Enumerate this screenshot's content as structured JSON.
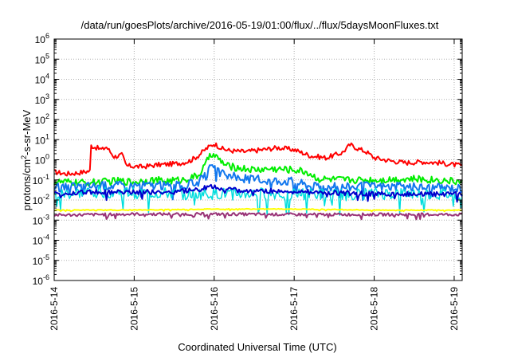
{
  "chart_data": {
    "type": "line",
    "title": "/data/run/goesPlots/archive/2016-05-19/01:00/flux/../flux/5daysMoonFluxes.txt",
    "xlabel": "Coordinated Universal Time (UTC)",
    "ylabel": {
      "prefix": "protons/cm",
      "sup": "2",
      "suffix": "-s-sr-MeV"
    },
    "yscale": "log",
    "ylim": [
      1e-06,
      1000000.0
    ],
    "xlim_days": [
      0,
      5.1
    ],
    "grid": true,
    "yticks": [
      {
        "value": -6,
        "base": "10",
        "exp": "-6"
      },
      {
        "value": -5,
        "base": "10",
        "exp": "-5"
      },
      {
        "value": -4,
        "base": "10",
        "exp": "-4"
      },
      {
        "value": -3,
        "base": "10",
        "exp": "-3"
      },
      {
        "value": -2,
        "base": "10",
        "exp": "-2"
      },
      {
        "value": -1,
        "base": "10",
        "exp": "-1"
      },
      {
        "value": 0,
        "base": "10",
        "exp": "0"
      },
      {
        "value": 1,
        "base": "10",
        "exp": "1"
      },
      {
        "value": 2,
        "base": "10",
        "exp": "2"
      },
      {
        "value": 3,
        "base": "10",
        "exp": "3"
      },
      {
        "value": 4,
        "base": "10",
        "exp": "4"
      },
      {
        "value": 5,
        "base": "10",
        "exp": "5"
      },
      {
        "value": 6,
        "base": "10",
        "exp": "6"
      }
    ],
    "xticks": [
      {
        "value": 0,
        "label": "2016-5-14"
      },
      {
        "value": 1,
        "label": "2016-5-15"
      },
      {
        "value": 2,
        "label": "2016-5-16"
      },
      {
        "value": 3,
        "label": "2016-5-17"
      },
      {
        "value": 4,
        "label": "2016-5-18"
      },
      {
        "value": 5,
        "label": "2016-5-19"
      }
    ],
    "series": [
      {
        "color": "#ff0000",
        "width": 2,
        "amp": 0.12,
        "points": [
          [
            0,
            -0.6
          ],
          [
            0.15,
            -0.7
          ],
          [
            0.3,
            -0.65
          ],
          [
            0.45,
            -0.55
          ],
          [
            0.46,
            0.7
          ],
          [
            0.6,
            0.5
          ],
          [
            0.65,
            0.65
          ],
          [
            0.75,
            0.15
          ],
          [
            0.85,
            0.25
          ],
          [
            0.9,
            -0.3
          ],
          [
            1.1,
            -0.35
          ],
          [
            1.3,
            -0.25
          ],
          [
            1.5,
            -0.2
          ],
          [
            1.6,
            -0.15
          ],
          [
            1.7,
            -0.05
          ],
          [
            1.8,
            0.2
          ],
          [
            1.9,
            0.55
          ],
          [
            2.0,
            0.8
          ],
          [
            2.1,
            0.55
          ],
          [
            2.2,
            0.45
          ],
          [
            2.4,
            0.4
          ],
          [
            2.6,
            0.5
          ],
          [
            2.8,
            0.6
          ],
          [
            3.0,
            0.5
          ],
          [
            3.2,
            0.2
          ],
          [
            3.4,
            0.1
          ],
          [
            3.6,
            0.35
          ],
          [
            3.7,
            0.75
          ],
          [
            3.8,
            0.55
          ],
          [
            3.9,
            0.4
          ],
          [
            4.0,
            0.1
          ],
          [
            4.2,
            -0.05
          ],
          [
            4.4,
            -0.15
          ],
          [
            4.6,
            -0.1
          ],
          [
            4.8,
            -0.15
          ],
          [
            5.0,
            -0.25
          ],
          [
            5.1,
            -0.3
          ]
        ]
      },
      {
        "color": "#00ee00",
        "width": 2,
        "amp": 0.18,
        "points": [
          [
            0,
            -1.1
          ],
          [
            0.4,
            -1.15
          ],
          [
            0.8,
            -1.05
          ],
          [
            1.0,
            -1.1
          ],
          [
            1.2,
            -1.0
          ],
          [
            1.4,
            -1.05
          ],
          [
            1.6,
            -1.0
          ],
          [
            1.8,
            -0.8
          ],
          [
            1.9,
            -0.2
          ],
          [
            1.95,
            0.35
          ],
          [
            2.05,
            0.05
          ],
          [
            2.15,
            -0.3
          ],
          [
            2.3,
            -0.4
          ],
          [
            2.5,
            -0.5
          ],
          [
            2.7,
            -0.45
          ],
          [
            3.0,
            -0.5
          ],
          [
            3.15,
            -0.6
          ],
          [
            3.3,
            -0.95
          ],
          [
            3.6,
            -1.0
          ],
          [
            4.0,
            -1.0
          ],
          [
            4.4,
            -0.95
          ],
          [
            4.8,
            -1.0
          ],
          [
            5.1,
            -1.1
          ]
        ]
      },
      {
        "color": "#1177ee",
        "width": 2,
        "amp": 0.22,
        "points": [
          [
            0,
            -1.4
          ],
          [
            0.4,
            -1.3
          ],
          [
            0.8,
            -1.25
          ],
          [
            1.2,
            -1.25
          ],
          [
            1.6,
            -1.3
          ],
          [
            1.8,
            -1.1
          ],
          [
            1.9,
            -0.8
          ],
          [
            1.95,
            -0.4
          ],
          [
            2.1,
            -0.7
          ],
          [
            2.3,
            -0.9
          ],
          [
            2.6,
            -1.0
          ],
          [
            3.0,
            -1.05
          ],
          [
            3.2,
            -1.3
          ],
          [
            3.5,
            -1.35
          ],
          [
            4.0,
            -1.3
          ],
          [
            4.5,
            -1.35
          ],
          [
            5.1,
            -1.4
          ]
        ]
      },
      {
        "color": "#00dddd",
        "width": 1.5,
        "amp": 0.3,
        "points": [
          [
            0,
            -1.75
          ],
          [
            0.5,
            -1.6
          ],
          [
            1.0,
            -1.65
          ],
          [
            1.5,
            -1.7
          ],
          [
            2.0,
            -1.7
          ],
          [
            2.5,
            -1.7
          ],
          [
            3.0,
            -1.7
          ],
          [
            3.5,
            -1.75
          ],
          [
            4.0,
            -1.7
          ],
          [
            4.5,
            -1.7
          ],
          [
            5.1,
            -1.75
          ]
        ]
      },
      {
        "color": "#0000cc",
        "width": 2,
        "amp": 0.12,
        "points": [
          [
            0,
            -1.7
          ],
          [
            0.5,
            -1.6
          ],
          [
            1.0,
            -1.6
          ],
          [
            1.5,
            -1.6
          ],
          [
            1.8,
            -1.5
          ],
          [
            1.95,
            -1.3
          ],
          [
            2.1,
            -1.45
          ],
          [
            2.4,
            -1.55
          ],
          [
            2.8,
            -1.55
          ],
          [
            3.2,
            -1.6
          ],
          [
            3.6,
            -1.65
          ],
          [
            4.0,
            -1.7
          ],
          [
            4.5,
            -1.7
          ],
          [
            5.1,
            -1.7
          ]
        ]
      },
      {
        "color": "#ffff00",
        "width": 2,
        "amp": 0.02,
        "points": [
          [
            0,
            -2.5
          ],
          [
            1,
            -2.5
          ],
          [
            2,
            -2.45
          ],
          [
            3,
            -2.45
          ],
          [
            4,
            -2.5
          ],
          [
            5.1,
            -2.5
          ]
        ]
      },
      {
        "color": "#993377",
        "width": 2,
        "amp": 0.07,
        "points": [
          [
            0,
            -2.75
          ],
          [
            1,
            -2.7
          ],
          [
            2,
            -2.7
          ],
          [
            3,
            -2.72
          ],
          [
            4,
            -2.72
          ],
          [
            5.1,
            -2.72
          ]
        ]
      }
    ]
  }
}
